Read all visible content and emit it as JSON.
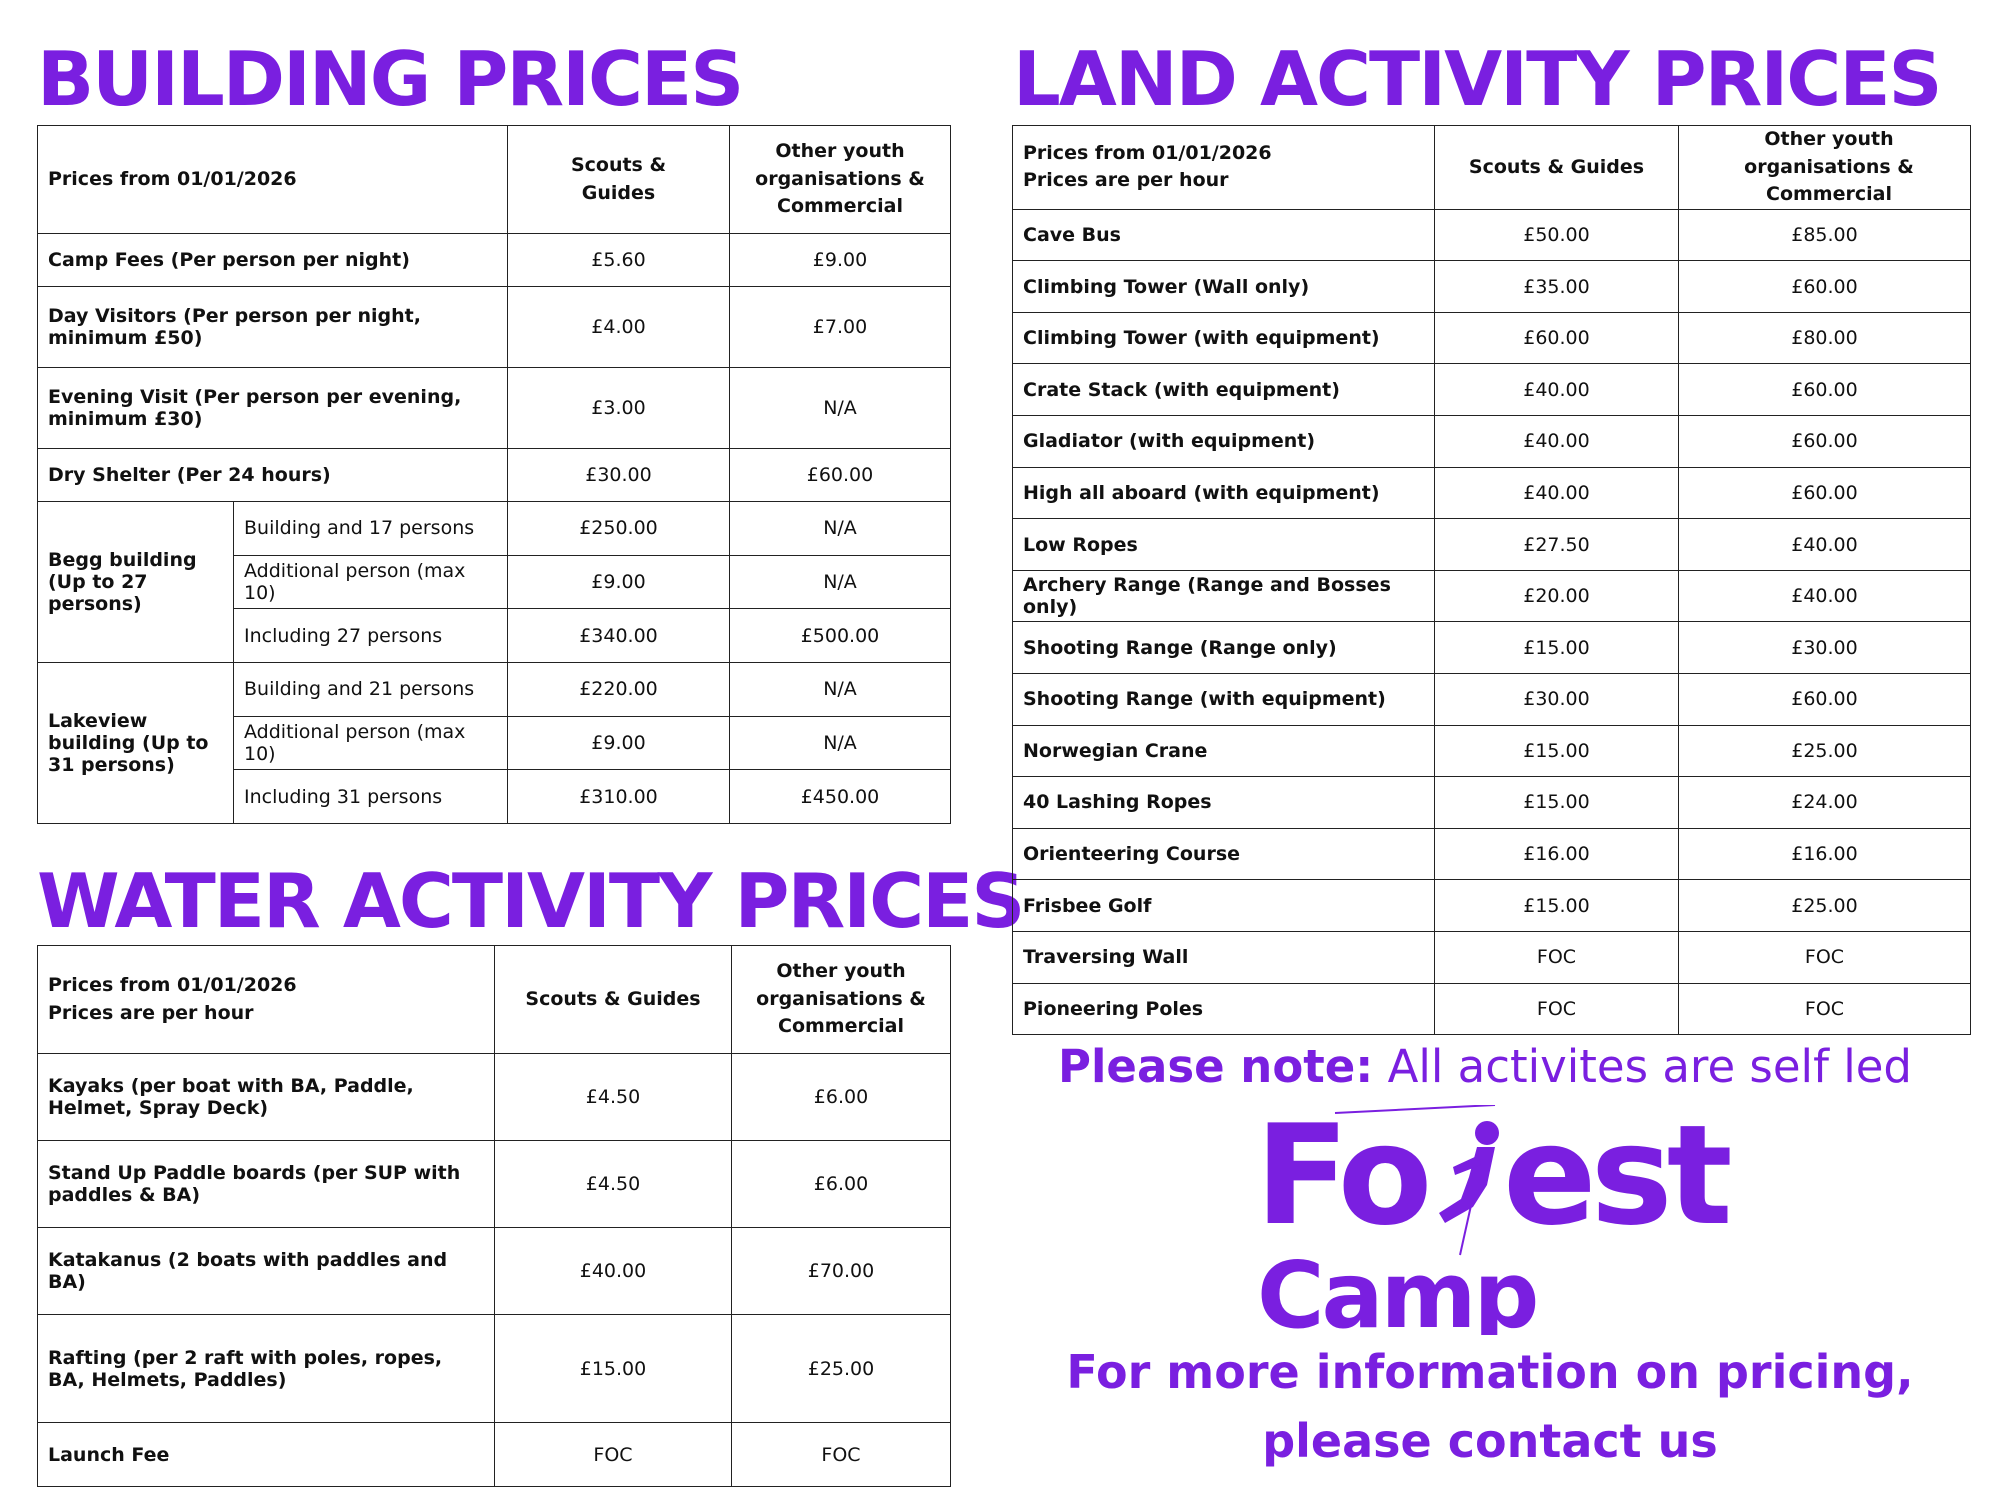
{
  "building": {
    "title": "BUILDING PRICES",
    "header": {
      "label": "Prices from 01/01/2026",
      "col1": "Scouts & Guides",
      "col2": "Other youth organisations & Commercial"
    },
    "rows": [
      {
        "label": "Camp Fees (Per person per night)",
        "scouts": "£5.60",
        "other": "£9.00"
      },
      {
        "label": "Day Visitors (Per person per night, minimum £50)",
        "scouts": "£4.00",
        "other": "£7.00"
      },
      {
        "label": "Evening Visit (Per person per evening, minimum £30)",
        "scouts": "£3.00",
        "other": "N/A"
      },
      {
        "label": "Dry Shelter (Per 24 hours)",
        "scouts": "£30.00",
        "other": "£60.00"
      }
    ],
    "groups": [
      {
        "label": "Begg building (Up to 27 persons)",
        "items": [
          {
            "label": "Building and 17 persons",
            "scouts": "£250.00",
            "other": "N/A"
          },
          {
            "label": "Additional person (max 10)",
            "scouts": "£9.00",
            "other": "N/A"
          },
          {
            "label": "Including 27 persons",
            "scouts": "£340.00",
            "other": "£500.00"
          }
        ]
      },
      {
        "label": "Lakeview building (Up to 31 persons)",
        "items": [
          {
            "label": "Building and 21 persons",
            "scouts": "£220.00",
            "other": "N/A"
          },
          {
            "label": "Additional person (max 10)",
            "scouts": "£9.00",
            "other": "N/A"
          },
          {
            "label": "Including 31 persons",
            "scouts": "£310.00",
            "other": "£450.00"
          }
        ]
      }
    ]
  },
  "water": {
    "title": "WATER ACTIVITY PRICES",
    "header": {
      "line1": "Prices from 01/01/2026",
      "line2": "Prices are per hour",
      "col1": "Scouts & Guides",
      "col2": "Other youth organisations & Commercial"
    },
    "rows": [
      {
        "label": "Kayaks (per boat with BA, Paddle, Helmet, Spray Deck)",
        "scouts": "£4.50",
        "other": "£6.00"
      },
      {
        "label": "Stand Up Paddle boards (per SUP with paddles & BA)",
        "scouts": "£4.50",
        "other": "£6.00"
      },
      {
        "label": "Katakanus (2 boats with paddles and BA)",
        "scouts": "£40.00",
        "other": "£70.00"
      },
      {
        "label": "Rafting (per 2 raft with poles, ropes, BA, Helmets, Paddles)",
        "scouts": "£15.00",
        "other": "£25.00"
      },
      {
        "label": "Launch Fee",
        "scouts": "FOC",
        "other": "FOC"
      }
    ]
  },
  "land": {
    "title": "LAND ACTIVITY PRICES",
    "header": {
      "line1": "Prices from 01/01/2026",
      "line2": "Prices are per hour",
      "col1": "Scouts & Guides",
      "col2": "Other youth organisations & Commercial"
    },
    "rows": [
      {
        "label": "Cave Bus",
        "scouts": "£50.00",
        "other": "£85.00"
      },
      {
        "label": "Climbing Tower (Wall only)",
        "scouts": "£35.00",
        "other": "£60.00"
      },
      {
        "label": "Climbing Tower (with equipment)",
        "scouts": "£60.00",
        "other": "£80.00"
      },
      {
        "label": "Crate Stack (with equipment)",
        "scouts": "£40.00",
        "other": "£60.00"
      },
      {
        "label": "Gladiator (with equipment)",
        "scouts": "£40.00",
        "other": "£60.00"
      },
      {
        "label": "High all aboard (with equipment)",
        "scouts": "£40.00",
        "other": "£60.00"
      },
      {
        "label": "Low Ropes",
        "scouts": "£27.50",
        "other": "£40.00"
      },
      {
        "label": "Archery Range (Range and Bosses only)",
        "scouts": "£20.00",
        "other": "£40.00"
      },
      {
        "label": "Shooting Range (Range only)",
        "scouts": "£15.00",
        "other": "£30.00"
      },
      {
        "label": "Shooting Range (with equipment)",
        "scouts": "£30.00",
        "other": "£60.00"
      },
      {
        "label": "Norwegian Crane",
        "scouts": "£15.00",
        "other": "£25.00"
      },
      {
        "label": "40 Lashing Ropes",
        "scouts": "£15.00",
        "other": "£24.00"
      },
      {
        "label": "Orienteering Course",
        "scouts": "£16.00",
        "other": "£16.00"
      },
      {
        "label": "Frisbee Golf",
        "scouts": "£15.00",
        "other": "£25.00"
      },
      {
        "label": "Traversing Wall",
        "scouts": "FOC",
        "other": "FOC"
      },
      {
        "label": "Pioneering Poles",
        "scouts": "FOC",
        "other": "FOC"
      }
    ]
  },
  "note": {
    "bold": "Please note:",
    "text": " All activites are self led"
  },
  "logo": {
    "line1a": "Fo",
    "line1b": "est",
    "line2": "Camp",
    "colors": {
      "brand": "#7a1fe0"
    }
  },
  "contact": {
    "line1": "For more information on pricing,",
    "line2": "please contact us"
  }
}
